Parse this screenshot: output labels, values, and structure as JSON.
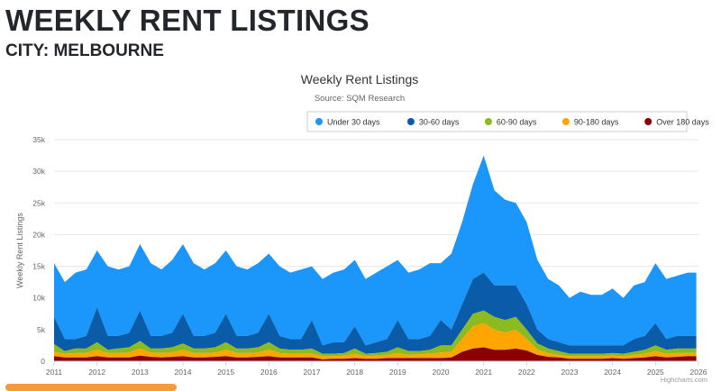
{
  "page": {
    "heading": "WEEKLY RENT LISTINGS",
    "subheading": "CITY: MELBOURNE"
  },
  "chart_data": {
    "type": "area",
    "stacked": true,
    "title": "Weekly Rent Listings",
    "subtitle": "Source: SQM Research",
    "ylabel": "Weekly Rent Listings",
    "xlabel": "",
    "credits": "Highcharts.com",
    "ylim": [
      0,
      35000
    ],
    "xlim": [
      2011,
      2026
    ],
    "yticks": [
      0,
      5000,
      10000,
      15000,
      20000,
      25000,
      30000,
      35000
    ],
    "ytick_labels": [
      "0",
      "5k",
      "10k",
      "15k",
      "20k",
      "25k",
      "30k",
      "35k"
    ],
    "xtick_labels": [
      "2011",
      "2012",
      "2013",
      "2014",
      "2015",
      "2016",
      "2017",
      "2018",
      "2019",
      "2020",
      "2021",
      "2022",
      "2023",
      "2024",
      "2025",
      "2026"
    ],
    "grid": true,
    "legend_position": "top-right",
    "x_start": 2011,
    "x_step_years": 0.25,
    "series": [
      {
        "name": "Under 30 days",
        "color": "#1b96fa",
        "values": [
          8500,
          9000,
          10500,
          10500,
          9000,
          11000,
          10500,
          10500,
          10500,
          11500,
          10500,
          11500,
          11000,
          11500,
          10500,
          11000,
          10000,
          11000,
          10500,
          11000,
          9500,
          11000,
          10500,
          11000,
          8500,
          10500,
          11000,
          11500,
          10500,
          10500,
          11000,
          11500,
          9500,
          10500,
          11000,
          11500,
          9000,
          12000,
          13000,
          15000,
          18500,
          15000,
          13500,
          13000,
          13000,
          11000,
          9500,
          9000,
          7500,
          8500,
          8000,
          8000,
          9000,
          7500,
          8500,
          8500,
          9500,
          9500,
          9500,
          10000
        ]
      },
      {
        "name": "30-60 days",
        "color": "#0b5ca8",
        "values": [
          4300,
          1900,
          1500,
          2000,
          5500,
          2200,
          2000,
          2300,
          4800,
          2000,
          2000,
          2300,
          4700,
          2000,
          2000,
          2300,
          4500,
          2000,
          2000,
          2300,
          4500,
          2000,
          1700,
          1700,
          4500,
          1300,
          1800,
          1700,
          3500,
          1300,
          1700,
          2000,
          4300,
          1900,
          1900,
          2200,
          4000,
          2500,
          4000,
          5500,
          6000,
          5000,
          5500,
          5000,
          4000,
          2200,
          1500,
          1400,
          1300,
          1300,
          1300,
          1300,
          1200,
          1300,
          2000,
          2200,
          3500,
          1700,
          2000,
          2000
        ]
      },
      {
        "name": "60-90 days",
        "color": "#8bbb1f",
        "values": [
          1200,
          400,
          700,
          700,
          1200,
          500,
          700,
          800,
          1200,
          600,
          700,
          800,
          1000,
          700,
          700,
          800,
          1200,
          700,
          700,
          800,
          1200,
          700,
          600,
          600,
          800,
          400,
          400,
          400,
          800,
          400,
          400,
          500,
          900,
          600,
          500,
          600,
          1100,
          1000,
          1500,
          2000,
          2000,
          2000,
          2000,
          2000,
          1500,
          1000,
          700,
          600,
          400,
          400,
          400,
          400,
          400,
          400,
          500,
          600,
          900,
          600,
          700,
          700
        ]
      },
      {
        "name": "90-180 days",
        "color": "#ffa500",
        "values": [
          700,
          600,
          700,
          700,
          1000,
          700,
          700,
          800,
          1100,
          700,
          700,
          700,
          1000,
          700,
          700,
          700,
          1000,
          700,
          700,
          700,
          1000,
          700,
          600,
          600,
          600,
          500,
          400,
          500,
          700,
          400,
          500,
          500,
          800,
          500,
          600,
          700,
          900,
          900,
          2000,
          3500,
          3800,
          3200,
          2700,
          3000,
          1800,
          800,
          600,
          400,
          400,
          400,
          400,
          400,
          400,
          400,
          500,
          600,
          800,
          600,
          600,
          500
        ]
      },
      {
        "name": "Over 180 days",
        "color": "#8b0000",
        "values": [
          800,
          600,
          600,
          600,
          800,
          600,
          600,
          600,
          900,
          700,
          600,
          700,
          800,
          600,
          600,
          700,
          800,
          600,
          600,
          700,
          800,
          600,
          600,
          600,
          600,
          300,
          400,
          400,
          500,
          400,
          400,
          500,
          500,
          500,
          500,
          500,
          500,
          600,
          1500,
          2000,
          2200,
          1800,
          1800,
          2000,
          1700,
          1000,
          700,
          600,
          400,
          400,
          400,
          400,
          500,
          400,
          500,
          600,
          800,
          600,
          700,
          800
        ]
      }
    ]
  }
}
